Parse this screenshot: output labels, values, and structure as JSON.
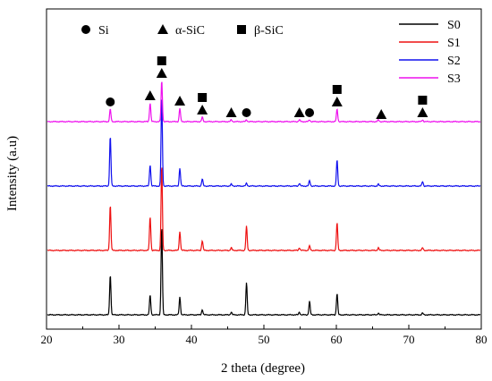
{
  "chart_data": {
    "type": "line",
    "title": "",
    "xlabel": "2 theta (degree)",
    "ylabel": "Intensity (a.u)",
    "xlim": [
      20,
      80
    ],
    "x_ticks": [
      20,
      30,
      40,
      50,
      60,
      70,
      80
    ],
    "grid": false,
    "y_ticks_shown": false,
    "legend_position": "top-right",
    "series": [
      {
        "name": "S0",
        "color": "#000000",
        "baseline": 0,
        "peaks": [
          {
            "x": 28.8,
            "h": 45
          },
          {
            "x": 34.3,
            "h": 22
          },
          {
            "x": 35.9,
            "h": 100
          },
          {
            "x": 38.4,
            "h": 20
          },
          {
            "x": 41.5,
            "h": 6
          },
          {
            "x": 45.5,
            "h": 3
          },
          {
            "x": 47.6,
            "h": 36
          },
          {
            "x": 54.9,
            "h": 3
          },
          {
            "x": 56.3,
            "h": 15
          },
          {
            "x": 60.1,
            "h": 24
          },
          {
            "x": 65.8,
            "h": 2
          },
          {
            "x": 71.9,
            "h": 2
          }
        ]
      },
      {
        "name": "S1",
        "color": "#ee1111",
        "baseline": 72,
        "peaks": [
          {
            "x": 28.8,
            "h": 51
          },
          {
            "x": 34.3,
            "h": 38
          },
          {
            "x": 35.9,
            "h": 96
          },
          {
            "x": 38.4,
            "h": 21
          },
          {
            "x": 41.5,
            "h": 11
          },
          {
            "x": 45.5,
            "h": 3
          },
          {
            "x": 47.6,
            "h": 27
          },
          {
            "x": 54.9,
            "h": 3
          },
          {
            "x": 56.3,
            "h": 5
          },
          {
            "x": 60.1,
            "h": 31
          },
          {
            "x": 65.8,
            "h": 3
          },
          {
            "x": 71.9,
            "h": 3
          }
        ]
      },
      {
        "name": "S2",
        "color": "#1111ee",
        "baseline": 144,
        "peaks": [
          {
            "x": 28.8,
            "h": 56
          },
          {
            "x": 34.3,
            "h": 24
          },
          {
            "x": 35.9,
            "h": 100
          },
          {
            "x": 38.4,
            "h": 20
          },
          {
            "x": 41.5,
            "h": 8
          },
          {
            "x": 45.5,
            "h": 2
          },
          {
            "x": 47.6,
            "h": 3
          },
          {
            "x": 54.9,
            "h": 3
          },
          {
            "x": 56.3,
            "h": 6
          },
          {
            "x": 60.1,
            "h": 29
          },
          {
            "x": 65.8,
            "h": 2
          },
          {
            "x": 71.9,
            "h": 5
          }
        ]
      },
      {
        "name": "S3",
        "color": "#ee11ee",
        "baseline": 216,
        "peaks": [
          {
            "x": 28.8,
            "h": 14
          },
          {
            "x": 34.3,
            "h": 21
          },
          {
            "x": 35.9,
            "h": 46
          },
          {
            "x": 38.4,
            "h": 15
          },
          {
            "x": 41.5,
            "h": 5
          },
          {
            "x": 45.5,
            "h": 2
          },
          {
            "x": 47.6,
            "h": 2
          },
          {
            "x": 54.9,
            "h": 2
          },
          {
            "x": 56.3,
            "h": 2
          },
          {
            "x": 60.1,
            "h": 14
          },
          {
            "x": 65.8,
            "h": 2
          },
          {
            "x": 71.9,
            "h": 2
          }
        ]
      }
    ],
    "phase_legend": [
      {
        "marker": "circle",
        "label": "Si"
      },
      {
        "marker": "triangle",
        "label": "α-SiC"
      },
      {
        "marker": "square",
        "label": "β-SiC"
      }
    ],
    "annotations": [
      {
        "marker": "circle",
        "x": 28.8
      },
      {
        "marker": "triangle",
        "x": 34.3
      },
      {
        "marker": "square",
        "x": 35.9
      },
      {
        "marker": "triangle",
        "x": 35.9
      },
      {
        "marker": "triangle",
        "x": 38.4
      },
      {
        "marker": "square",
        "x": 41.5
      },
      {
        "marker": "triangle",
        "x": 41.5
      },
      {
        "marker": "triangle",
        "x": 45.5
      },
      {
        "marker": "circle",
        "x": 47.6
      },
      {
        "marker": "triangle",
        "x": 54.9
      },
      {
        "marker": "circle",
        "x": 56.3
      },
      {
        "marker": "square",
        "x": 60.1
      },
      {
        "marker": "triangle",
        "x": 60.1
      },
      {
        "marker": "triangle",
        "x": 66.2
      },
      {
        "marker": "square",
        "x": 71.9
      },
      {
        "marker": "triangle",
        "x": 71.9
      }
    ]
  }
}
